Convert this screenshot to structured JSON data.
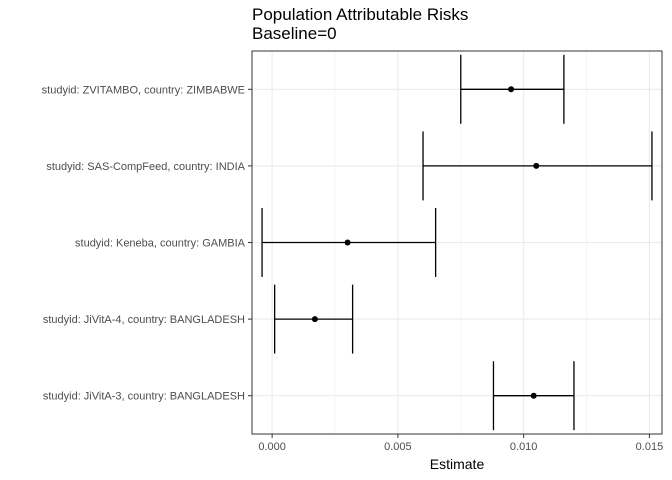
{
  "chart_data": {
    "type": "scatter",
    "subtype": "forest-plot-with-error-bars",
    "title": "Population Attributable Risks",
    "subtitle": "Baseline=0",
    "xlabel": "Estimate",
    "ylabel": "",
    "xlim": [
      -0.0008,
      0.0155
    ],
    "x_ticks": [
      0.0,
      0.005,
      0.01,
      0.015
    ],
    "x_tick_labels": [
      "0.000",
      "0.005",
      "0.010",
      "0.015"
    ],
    "grid": true,
    "theme": "bw",
    "categories": [
      "studyid: ZVITAMBO, country: ZIMBABWE",
      "studyid: SAS-CompFeed, country: INDIA",
      "studyid: Keneba, country: GAMBIA",
      "studyid: JiVitA-4, country: BANGLADESH",
      "studyid: JiVitA-3, country: BANGLADESH"
    ],
    "estimates": [
      0.0095,
      0.0105,
      0.003,
      0.0017,
      0.0104
    ],
    "ci_lower": [
      0.0075,
      0.006,
      -0.0004,
      0.0001,
      0.0088
    ],
    "ci_upper": [
      0.0116,
      0.0151,
      0.0065,
      0.0032,
      0.012
    ]
  }
}
